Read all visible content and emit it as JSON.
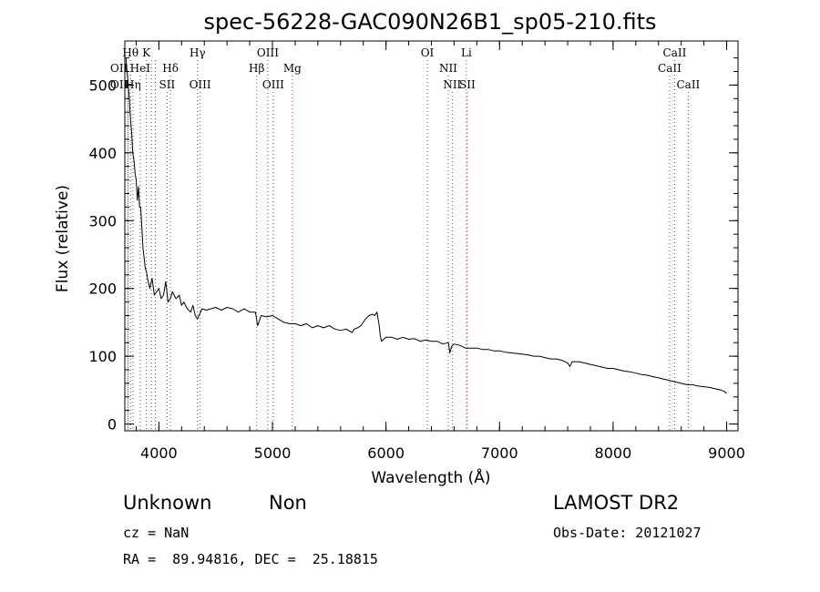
{
  "chart_data": {
    "type": "line",
    "title": "spec-56228-GAC090N26B1_sp05-210.fits",
    "xlabel": "Wavelength (Å)",
    "ylabel": "Flux (relative)",
    "xlim": [
      3700,
      9100
    ],
    "ylim": [
      -10,
      565
    ],
    "xticks": [
      {
        "v": 4000,
        "label": "4000"
      },
      {
        "v": 5000,
        "label": "5000"
      },
      {
        "v": 6000,
        "label": "6000"
      },
      {
        "v": 7000,
        "label": "7000"
      },
      {
        "v": 8000,
        "label": "8000"
      },
      {
        "v": 9000,
        "label": "9000"
      }
    ],
    "yticks": [
      {
        "v": 0,
        "label": "0"
      },
      {
        "v": 100,
        "label": "100"
      },
      {
        "v": 200,
        "label": "200"
      },
      {
        "v": 300,
        "label": "300"
      },
      {
        "v": 400,
        "label": "400"
      },
      {
        "v": 500,
        "label": "500"
      }
    ],
    "grid": false,
    "series": [
      {
        "color": "#000000",
        "points": [
          [
            3710,
            540
          ],
          [
            3720,
            520
          ],
          [
            3730,
            500
          ],
          [
            3740,
            480
          ],
          [
            3750,
            450
          ],
          [
            3760,
            430
          ],
          [
            3770,
            400
          ],
          [
            3780,
            390
          ],
          [
            3790,
            370
          ],
          [
            3800,
            360
          ],
          [
            3810,
            330
          ],
          [
            3820,
            350
          ],
          [
            3830,
            320
          ],
          [
            3840,
            320
          ],
          [
            3850,
            290
          ],
          [
            3860,
            260
          ],
          [
            3870,
            245
          ],
          [
            3880,
            230
          ],
          [
            3890,
            225
          ],
          [
            3900,
            215
          ],
          [
            3920,
            200
          ],
          [
            3940,
            215
          ],
          [
            3960,
            190
          ],
          [
            3980,
            195
          ],
          [
            4000,
            200
          ],
          [
            4020,
            185
          ],
          [
            4040,
            190
          ],
          [
            4060,
            210
          ],
          [
            4080,
            180
          ],
          [
            4100,
            185
          ],
          [
            4120,
            195
          ],
          [
            4150,
            185
          ],
          [
            4180,
            190
          ],
          [
            4200,
            175
          ],
          [
            4220,
            180
          ],
          [
            4250,
            170
          ],
          [
            4280,
            165
          ],
          [
            4300,
            175
          ],
          [
            4320,
            160
          ],
          [
            4340,
            155
          ],
          [
            4380,
            170
          ],
          [
            4420,
            168
          ],
          [
            4460,
            170
          ],
          [
            4500,
            172
          ],
          [
            4550,
            168
          ],
          [
            4600,
            172
          ],
          [
            4650,
            170
          ],
          [
            4700,
            165
          ],
          [
            4750,
            170
          ],
          [
            4800,
            165
          ],
          [
            4850,
            165
          ],
          [
            4870,
            145
          ],
          [
            4900,
            160
          ],
          [
            4950,
            158
          ],
          [
            5000,
            160
          ],
          [
            5050,
            155
          ],
          [
            5100,
            150
          ],
          [
            5150,
            148
          ],
          [
            5200,
            148
          ],
          [
            5250,
            145
          ],
          [
            5300,
            148
          ],
          [
            5350,
            142
          ],
          [
            5400,
            145
          ],
          [
            5450,
            142
          ],
          [
            5500,
            145
          ],
          [
            5550,
            140
          ],
          [
            5600,
            138
          ],
          [
            5650,
            140
          ],
          [
            5700,
            135
          ],
          [
            5720,
            140
          ],
          [
            5750,
            142
          ],
          [
            5780,
            145
          ],
          [
            5800,
            150
          ],
          [
            5820,
            155
          ],
          [
            5850,
            160
          ],
          [
            5880,
            162
          ],
          [
            5900,
            160
          ],
          [
            5920,
            165
          ],
          [
            5940,
            145
          ],
          [
            5950,
            130
          ],
          [
            5960,
            122
          ],
          [
            6000,
            128
          ],
          [
            6050,
            128
          ],
          [
            6100,
            125
          ],
          [
            6150,
            128
          ],
          [
            6200,
            125
          ],
          [
            6250,
            126
          ],
          [
            6300,
            122
          ],
          [
            6350,
            124
          ],
          [
            6400,
            122
          ],
          [
            6450,
            122
          ],
          [
            6500,
            118
          ],
          [
            6550,
            120
          ],
          [
            6562,
            105
          ],
          [
            6580,
            115
          ],
          [
            6600,
            118
          ],
          [
            6650,
            116
          ],
          [
            6700,
            112
          ],
          [
            6750,
            112
          ],
          [
            6800,
            112
          ],
          [
            6850,
            110
          ],
          [
            6900,
            110
          ],
          [
            6950,
            108
          ],
          [
            7000,
            108
          ],
          [
            7050,
            106
          ],
          [
            7100,
            105
          ],
          [
            7150,
            104
          ],
          [
            7200,
            103
          ],
          [
            7250,
            102
          ],
          [
            7300,
            100
          ],
          [
            7350,
            100
          ],
          [
            7400,
            98
          ],
          [
            7450,
            96
          ],
          [
            7500,
            96
          ],
          [
            7550,
            94
          ],
          [
            7600,
            90
          ],
          [
            7620,
            85
          ],
          [
            7640,
            92
          ],
          [
            7700,
            92
          ],
          [
            7750,
            90
          ],
          [
            7800,
            88
          ],
          [
            7850,
            86
          ],
          [
            7900,
            84
          ],
          [
            7950,
            82
          ],
          [
            8000,
            82
          ],
          [
            8050,
            80
          ],
          [
            8100,
            78
          ],
          [
            8150,
            77
          ],
          [
            8200,
            75
          ],
          [
            8250,
            73
          ],
          [
            8300,
            72
          ],
          [
            8350,
            70
          ],
          [
            8400,
            68
          ],
          [
            8450,
            66
          ],
          [
            8500,
            64
          ],
          [
            8550,
            62
          ],
          [
            8600,
            60
          ],
          [
            8650,
            58
          ],
          [
            8700,
            58
          ],
          [
            8750,
            56
          ],
          [
            8800,
            55
          ],
          [
            8850,
            54
          ],
          [
            8900,
            52
          ],
          [
            8950,
            50
          ],
          [
            8980,
            48
          ],
          [
            9000,
            45
          ]
        ]
      }
    ],
    "annotations": [
      {
        "wavelength": 3727,
        "label": "OII",
        "row": 1,
        "color": "#555555",
        "anchor": "end"
      },
      {
        "wavelength": 3727,
        "label": "OII",
        "row": 2,
        "color": "#555555",
        "anchor": "end"
      },
      {
        "wavelength": 3750,
        "label": "Hθ",
        "row": 0,
        "color": "#555555",
        "anchor": "middle"
      },
      {
        "wavelength": 3771,
        "label": "Hη",
        "row": 2,
        "color": "#555555",
        "anchor": "middle"
      },
      {
        "wavelength": 3835,
        "label": "HeI",
        "row": 1,
        "color": "#555555",
        "anchor": "middle"
      },
      {
        "wavelength": 3889,
        "label": "K",
        "row": 0,
        "color": "#555555",
        "anchor": "middle"
      },
      {
        "wavelength": 3934,
        "label": "",
        "row": 0,
        "color": "#555555",
        "anchor": "middle"
      },
      {
        "wavelength": 3969,
        "label": "",
        "row": 0,
        "color": "#555555",
        "anchor": "middle"
      },
      {
        "wavelength": 4072,
        "label": "SII",
        "row": 2,
        "color": "#555555",
        "anchor": "middle"
      },
      {
        "wavelength": 4102,
        "label": "Hδ",
        "row": 1,
        "color": "#555555",
        "anchor": "middle"
      },
      {
        "wavelength": 4340,
        "label": "Hγ",
        "row": 0,
        "color": "#555555",
        "anchor": "middle"
      },
      {
        "wavelength": 4363,
        "label": "OIII",
        "row": 2,
        "color": "#555555",
        "anchor": "middle"
      },
      {
        "wavelength": 4861,
        "label": "Hβ",
        "row": 1,
        "color": "#cc3333",
        "anchor": "middle"
      },
      {
        "wavelength": 4959,
        "label": "OIII",
        "row": 0,
        "color": "#555555",
        "anchor": "middle"
      },
      {
        "wavelength": 5007,
        "label": "OIII",
        "row": 2,
        "color": "#555555",
        "anchor": "middle"
      },
      {
        "wavelength": 5175,
        "label": "Mg",
        "row": 1,
        "color": "#cc3333",
        "anchor": "middle"
      },
      {
        "wavelength": 6364,
        "label": "OI",
        "row": 0,
        "color": "#555555",
        "anchor": "middle"
      },
      {
        "wavelength": 6548,
        "label": "NII",
        "row": 1,
        "color": "#cc3333",
        "anchor": "middle"
      },
      {
        "wavelength": 6583,
        "label": "NII",
        "row": 2,
        "color": "#555555",
        "anchor": "middle"
      },
      {
        "wavelength": 6708,
        "label": "Li",
        "row": 0,
        "color": "#cc3333",
        "anchor": "middle"
      },
      {
        "wavelength": 6716,
        "label": "SII",
        "row": 2,
        "color": "#cc3333",
        "anchor": "middle"
      },
      {
        "wavelength": 8498,
        "label": "CaII",
        "row": 1,
        "color": "#555555",
        "anchor": "middle"
      },
      {
        "wavelength": 8542,
        "label": "CaII",
        "row": 0,
        "color": "#555555",
        "anchor": "middle"
      },
      {
        "wavelength": 8662,
        "label": "CaII",
        "row": 2,
        "color": "#555555",
        "anchor": "middle"
      }
    ]
  },
  "info": {
    "class": "Unknown",
    "subclass": "Non",
    "survey": "LAMOST DR2",
    "cz": "cz = NaN",
    "obs_date": "Obs-Date: 20121027",
    "coords": "RA =  89.94816, DEC =  25.18815"
  }
}
